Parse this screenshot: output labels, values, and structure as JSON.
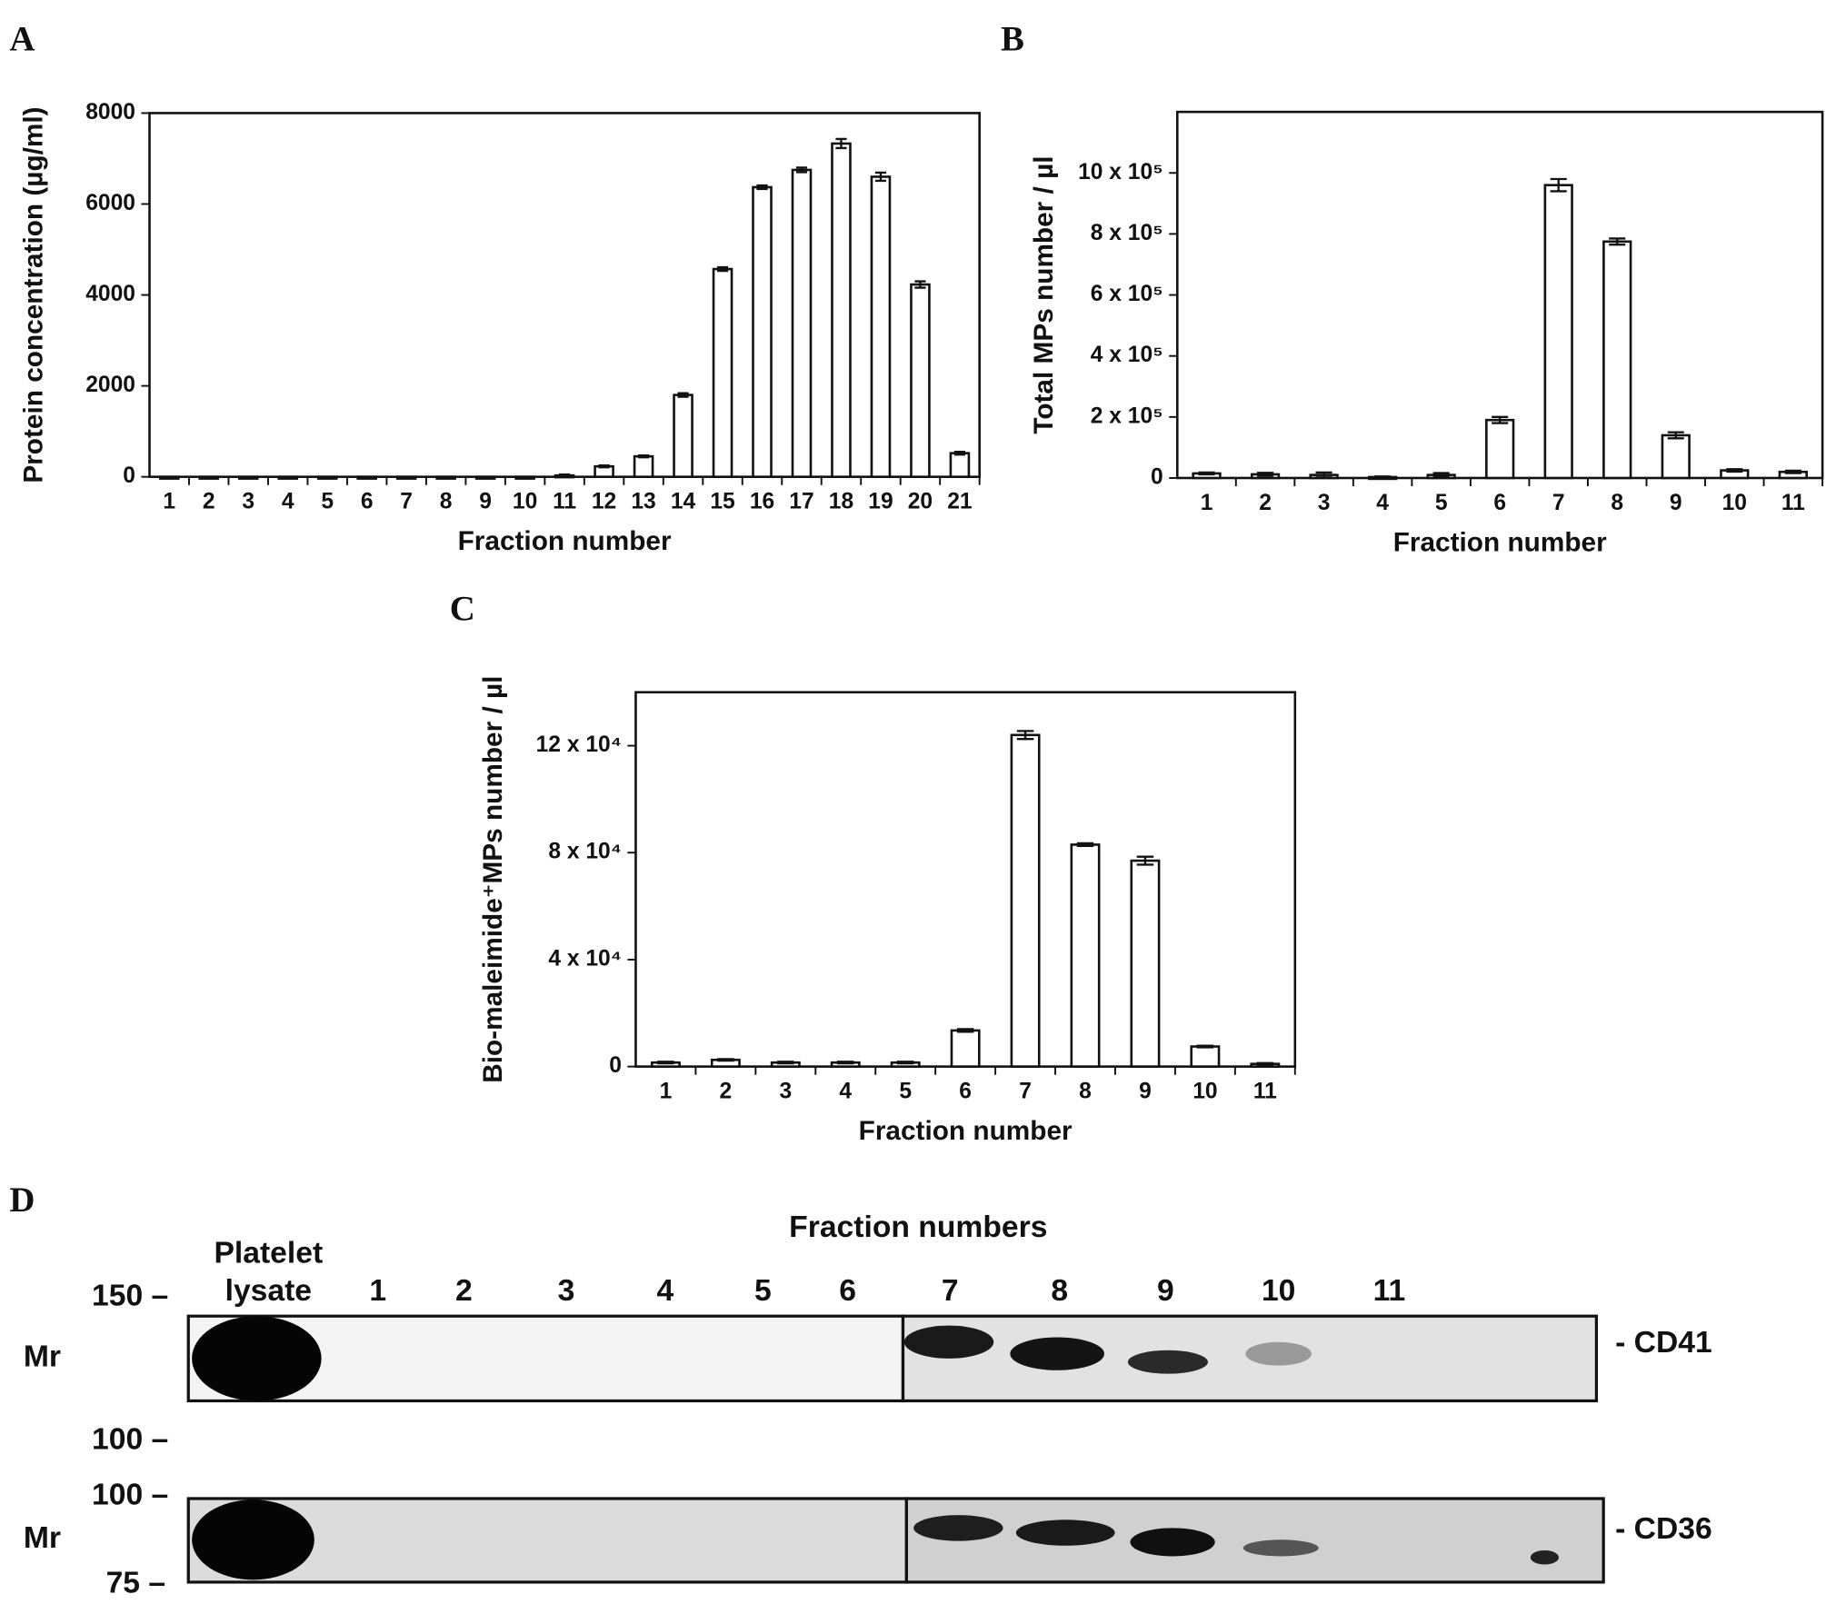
{
  "chart_data": [
    {
      "type": "bar",
      "panel": "A",
      "ylabel": "Protein concentration (µg/ml)",
      "xlabel": "Fraction number",
      "categories": [
        "1",
        "2",
        "3",
        "4",
        "5",
        "6",
        "7",
        "8",
        "9",
        "10",
        "11",
        "12",
        "13",
        "14",
        "15",
        "16",
        "17",
        "18",
        "19",
        "20",
        "21"
      ],
      "values": [
        0,
        0,
        0,
        0,
        0,
        0,
        0,
        0,
        0,
        0,
        30,
        230,
        450,
        1800,
        4570,
        6370,
        6750,
        7330,
        6600,
        4230,
        520
      ],
      "errors": [
        0,
        0,
        0,
        0,
        0,
        0,
        0,
        0,
        0,
        0,
        20,
        20,
        20,
        40,
        40,
        40,
        50,
        100,
        90,
        70,
        30
      ],
      "color": "#ffffff",
      "ylim": [
        0,
        8000
      ],
      "yticks": [
        0,
        2000,
        4000,
        6000,
        8000
      ]
    },
    {
      "type": "bar",
      "panel": "B",
      "ylabel": "Total MPs number / µl",
      "xlabel": "Fraction number",
      "categories": [
        "1",
        "2",
        "3",
        "4",
        "5",
        "6",
        "7",
        "8",
        "9",
        "10",
        "11"
      ],
      "values": [
        15000,
        12000,
        10000,
        3000,
        10000,
        190000,
        960000,
        775000,
        140000,
        25000,
        20000
      ],
      "errors": [
        3000,
        5000,
        8000,
        2000,
        6000,
        10000,
        20000,
        10000,
        10000,
        4000,
        4000
      ],
      "color": "#ffffff",
      "ylim": [
        0,
        1200000
      ],
      "yticks": [
        {
          "value": 0,
          "label": "0"
        },
        {
          "value": 200000,
          "label": "2 x 10⁵"
        },
        {
          "value": 400000,
          "label": "4 x 10⁵"
        },
        {
          "value": 600000,
          "label": "6 x 10⁵"
        },
        {
          "value": 800000,
          "label": "8 x 10⁵"
        },
        {
          "value": 1000000,
          "label": "10 x 10⁵"
        }
      ]
    },
    {
      "type": "bar",
      "panel": "C",
      "ylabel": "Bio-maleimide⁺MPs number / µl",
      "xlabel": "Fraction number",
      "categories": [
        "1",
        "2",
        "3",
        "4",
        "5",
        "6",
        "7",
        "8",
        "9",
        "10",
        "11"
      ],
      "values": [
        1500,
        2500,
        1500,
        1500,
        1500,
        13500,
        124000,
        83000,
        77000,
        7500,
        1000
      ],
      "errors": [
        300,
        300,
        300,
        300,
        300,
        500,
        1500,
        500,
        1500,
        300,
        300
      ],
      "color": "#ffffff",
      "ylim": [
        0,
        140000
      ],
      "yticks": [
        {
          "value": 0,
          "label": "0"
        },
        {
          "value": 40000,
          "label": "4 x 10⁴"
        },
        {
          "value": 80000,
          "label": "8 x 10⁴"
        },
        {
          "value": 120000,
          "label": "12 x 10⁴"
        }
      ]
    }
  ],
  "blot": {
    "panel": "D",
    "title": "Fraction numbers",
    "lysate": [
      "Platelet",
      "lysate"
    ],
    "lanes": [
      "1",
      "2",
      "3",
      "4",
      "5",
      "6",
      "7",
      "8",
      "9",
      "10",
      "11"
    ],
    "markers": [
      "150 –",
      "100 –",
      "100 –",
      "75 –"
    ],
    "mr": "Mr",
    "proteins": [
      "- CD41",
      "- CD36"
    ]
  }
}
